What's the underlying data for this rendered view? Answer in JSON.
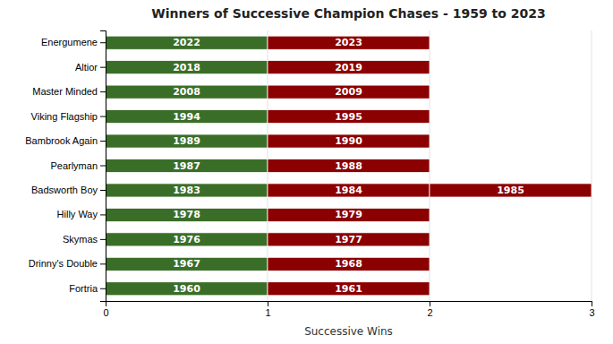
{
  "chart_data": {
    "type": "bar",
    "orientation": "horizontal",
    "stacked": true,
    "grid": true,
    "title": "Winners of Successive Champion Chases - 1959 to 2023",
    "xlabel": "Successive Wins",
    "categories": [
      "Energumene",
      "Altior",
      "Master Minded",
      "Viking Flagship",
      "Bambrook Again",
      "Pearlyman",
      "Badsworth Boy",
      "Hilly Way",
      "Skymas",
      "Drinny's Double",
      "Fortria"
    ],
    "series": [
      {
        "color": "#3a6e28",
        "values": [
          1,
          1,
          1,
          1,
          1,
          1,
          1,
          1,
          1,
          1,
          1
        ],
        "labels": [
          "2022",
          "2018",
          "2008",
          "1994",
          "1989",
          "1987",
          "1983",
          "1978",
          "1976",
          "1967",
          "1960"
        ]
      },
      {
        "color": "#8b0000",
        "values": [
          1,
          1,
          1,
          1,
          1,
          1,
          1,
          1,
          1,
          1,
          1
        ],
        "labels": [
          "2023",
          "2019",
          "2009",
          "1995",
          "1990",
          "1988",
          "1984",
          "1979",
          "1977",
          "1968",
          "1961"
        ]
      },
      {
        "color": "#8b0000",
        "values": [
          0,
          0,
          0,
          0,
          0,
          0,
          1,
          0,
          0,
          0,
          0
        ],
        "labels": [
          null,
          null,
          null,
          null,
          null,
          null,
          "1985",
          null,
          null,
          null,
          null
        ]
      }
    ],
    "xlim": [
      0,
      3
    ],
    "xticks": [
      0,
      1,
      2,
      3
    ]
  }
}
